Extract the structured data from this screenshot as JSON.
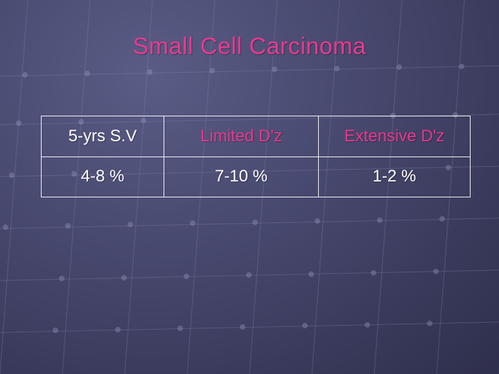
{
  "slide": {
    "title": "Small Cell Carcinoma"
  },
  "table": {
    "header": [
      {
        "text": "5-yrs S.V",
        "color": "#ffffff"
      },
      {
        "text": "Limited D'z",
        "color": "#e8378c"
      },
      {
        "text": "Extensive D'z",
        "color": "#e8378c"
      }
    ],
    "rows": [
      [
        "4-8 %",
        "7-10 %",
        "1-2 %"
      ]
    ]
  },
  "colors": {
    "title": "#e83a8f",
    "accent_pink": "#e8378c",
    "background": "#46476c",
    "border": "#f4f4f8"
  }
}
